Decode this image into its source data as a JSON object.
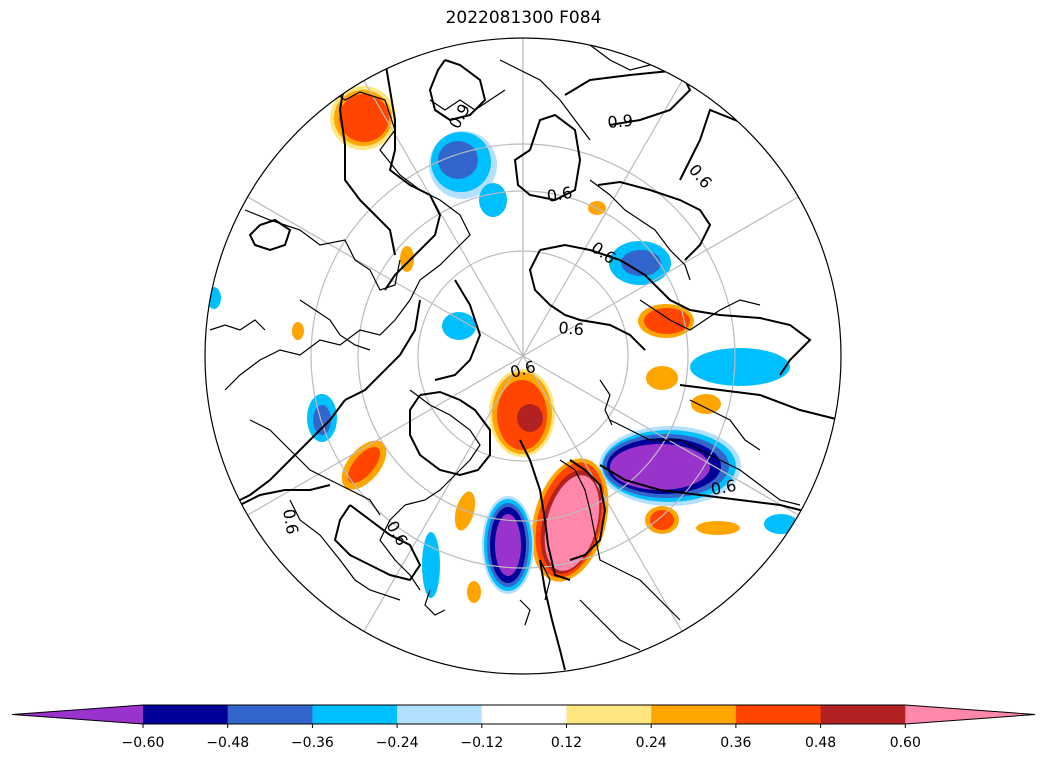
{
  "title": "2022081300 F084",
  "contour_labels": [
    "0.9",
    "0.6",
    "0.6",
    "0.6",
    "0.6",
    "0.6",
    "0.6",
    "0.6",
    "0.9",
    "0.6"
  ],
  "colorbar": {
    "colors": [
      "#9933cc",
      "#000099",
      "#3366cc",
      "#00bfff",
      "#b3e0ff",
      "#ffffff",
      "#ffe680",
      "#ffa500",
      "#ff4500",
      "#b22222",
      "#ff88aa"
    ],
    "ticks": [
      "−0.60",
      "−0.48",
      "−0.36",
      "−0.24",
      "−0.12",
      "0.12",
      "0.24",
      "0.36",
      "0.48",
      "0.60"
    ],
    "extend": "both"
  },
  "colors": {
    "coastline": "#000000",
    "contour": "#000000",
    "graticule": "#bbbbbb"
  }
}
